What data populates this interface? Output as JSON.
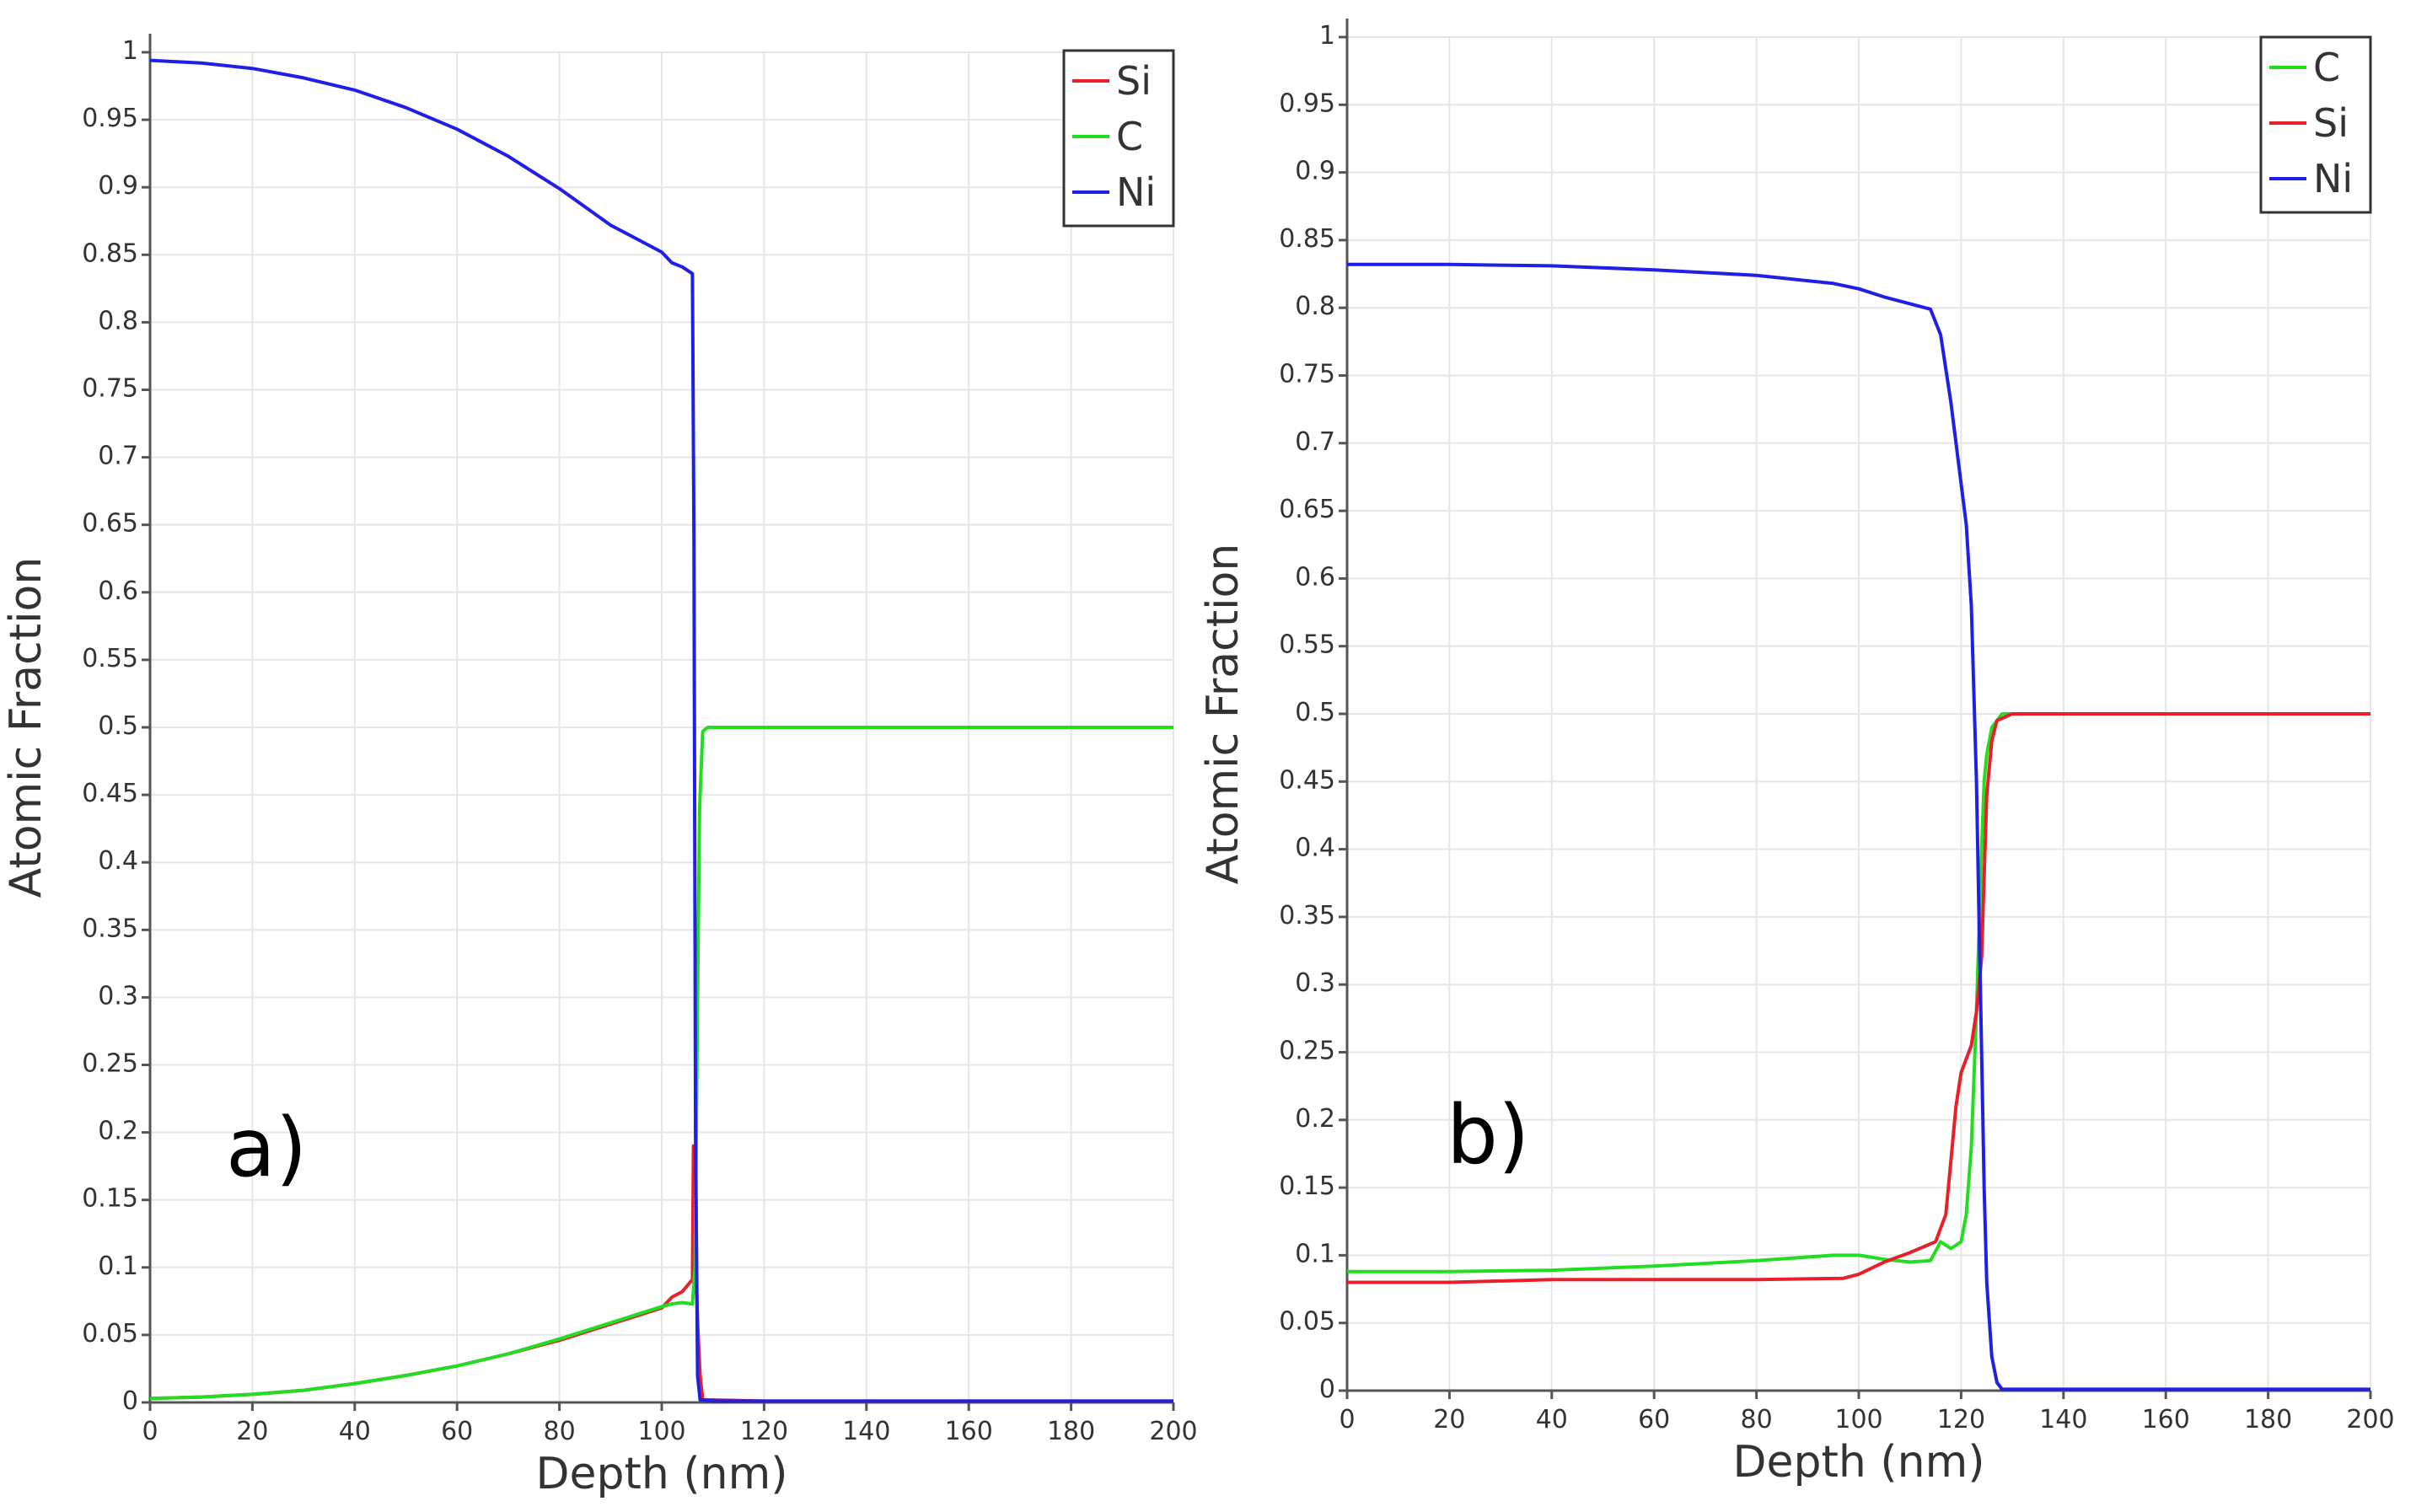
{
  "chart_data": [
    {
      "type": "line",
      "panel_label": "a)",
      "xlabel": "Depth (nm)",
      "ylabel": "Atomic Fraction",
      "xlim": [
        0,
        200
      ],
      "ylim": [
        0,
        1
      ],
      "x_ticks": [
        "0",
        "20",
        "40",
        "60",
        "80",
        "100",
        "120",
        "140",
        "160",
        "180",
        "200"
      ],
      "y_ticks": [
        "0",
        "0.05",
        "0.1",
        "0.15",
        "0.2",
        "0.25",
        "0.3",
        "0.35",
        "0.4",
        "0.45",
        "0.5",
        "0.55",
        "0.6",
        "0.65",
        "0.7",
        "0.75",
        "0.8",
        "0.85",
        "0.9",
        "0.95",
        "1"
      ],
      "grid": true,
      "legend_position": "top-right",
      "series": [
        {
          "name": "Si",
          "color": "#e8202a",
          "points": [
            [
              0,
              0.003
            ],
            [
              10,
              0.004
            ],
            [
              20,
              0.006
            ],
            [
              30,
              0.009
            ],
            [
              40,
              0.014
            ],
            [
              50,
              0.02
            ],
            [
              60,
              0.027
            ],
            [
              70,
              0.036
            ],
            [
              80,
              0.046
            ],
            [
              90,
              0.058
            ],
            [
              100,
              0.07
            ],
            [
              102,
              0.078
            ],
            [
              104,
              0.082
            ],
            [
              106,
              0.091
            ],
            [
              106.2,
              0.19
            ],
            [
              106.5,
              0.12
            ],
            [
              107,
              0.06
            ],
            [
              107.5,
              0.02
            ],
            [
              108,
              0.002
            ],
            [
              120,
              0.001
            ],
            [
              140,
              0.001
            ],
            [
              160,
              0.001
            ],
            [
              180,
              0.001
            ],
            [
              200,
              0.001
            ]
          ]
        },
        {
          "name": "C",
          "color": "#22dd22",
          "points": [
            [
              0,
              0.003
            ],
            [
              10,
              0.004
            ],
            [
              20,
              0.006
            ],
            [
              30,
              0.009
            ],
            [
              40,
              0.014
            ],
            [
              50,
              0.02
            ],
            [
              60,
              0.027
            ],
            [
              70,
              0.036
            ],
            [
              80,
              0.047
            ],
            [
              90,
              0.059
            ],
            [
              100,
              0.071
            ],
            [
              102,
              0.073
            ],
            [
              104,
              0.074
            ],
            [
              106,
              0.073
            ],
            [
              106.5,
              0.1
            ],
            [
              107,
              0.3
            ],
            [
              107.4,
              0.44
            ],
            [
              108,
              0.497
            ],
            [
              109,
              0.5
            ],
            [
              120,
              0.5
            ],
            [
              140,
              0.5
            ],
            [
              160,
              0.5
            ],
            [
              180,
              0.5
            ],
            [
              200,
              0.5
            ]
          ]
        },
        {
          "name": "Ni",
          "color": "#1f1fe6",
          "points": [
            [
              0,
              0.994
            ],
            [
              10,
              0.992
            ],
            [
              20,
              0.988
            ],
            [
              30,
              0.981
            ],
            [
              40,
              0.972
            ],
            [
              50,
              0.959
            ],
            [
              60,
              0.943
            ],
            [
              70,
              0.923
            ],
            [
              80,
              0.899
            ],
            [
              90,
              0.872
            ],
            [
              100,
              0.852
            ],
            [
              102,
              0.844
            ],
            [
              104,
              0.841
            ],
            [
              106,
              0.836
            ],
            [
              106.3,
              0.64
            ],
            [
              106.6,
              0.2
            ],
            [
              107,
              0.02
            ],
            [
              107.5,
              0.002
            ],
            [
              110,
              0.001
            ],
            [
              120,
              0.001
            ],
            [
              140,
              0.001
            ],
            [
              160,
              0.001
            ],
            [
              180,
              0.001
            ],
            [
              200,
              0.001
            ]
          ]
        }
      ]
    },
    {
      "type": "line",
      "panel_label": "b)",
      "xlabel": "Depth (nm)",
      "ylabel": "Atomic Fraction",
      "xlim": [
        0,
        200
      ],
      "ylim": [
        0,
        1
      ],
      "x_ticks": [
        "0",
        "20",
        "40",
        "60",
        "80",
        "100",
        "120",
        "140",
        "160",
        "180",
        "200"
      ],
      "y_ticks": [
        "0",
        "0.05",
        "0.1",
        "0.15",
        "0.2",
        "0.25",
        "0.3",
        "0.35",
        "0.4",
        "0.45",
        "0.5",
        "0.55",
        "0.6",
        "0.65",
        "0.7",
        "0.75",
        "0.8",
        "0.85",
        "0.9",
        "0.95",
        "1"
      ],
      "grid": true,
      "legend_position": "top-right",
      "series": [
        {
          "name": "C",
          "color": "#22dd22",
          "points": [
            [
              0,
              0.088
            ],
            [
              20,
              0.088
            ],
            [
              40,
              0.089
            ],
            [
              60,
              0.092
            ],
            [
              80,
              0.096
            ],
            [
              95,
              0.1
            ],
            [
              100,
              0.1
            ],
            [
              105,
              0.097
            ],
            [
              110,
              0.095
            ],
            [
              114,
              0.096
            ],
            [
              116,
              0.11
            ],
            [
              118,
              0.105
            ],
            [
              120,
              0.11
            ],
            [
              121,
              0.13
            ],
            [
              122,
              0.18
            ],
            [
              123,
              0.28
            ],
            [
              124,
              0.4
            ],
            [
              124.5,
              0.45
            ],
            [
              125,
              0.47
            ],
            [
              126,
              0.49
            ],
            [
              128,
              0.5
            ],
            [
              140,
              0.5
            ],
            [
              160,
              0.5
            ],
            [
              180,
              0.5
            ],
            [
              200,
              0.5
            ]
          ]
        },
        {
          "name": "Si",
          "color": "#e8202a",
          "points": [
            [
              0,
              0.08
            ],
            [
              20,
              0.08
            ],
            [
              40,
              0.082
            ],
            [
              60,
              0.082
            ],
            [
              80,
              0.082
            ],
            [
              97,
              0.083
            ],
            [
              100,
              0.086
            ],
            [
              105,
              0.095
            ],
            [
              110,
              0.102
            ],
            [
              115,
              0.11
            ],
            [
              117,
              0.13
            ],
            [
              118,
              0.17
            ],
            [
              119,
              0.21
            ],
            [
              120,
              0.235
            ],
            [
              122,
              0.255
            ],
            [
              123,
              0.28
            ],
            [
              124,
              0.32
            ],
            [
              124.5,
              0.38
            ],
            [
              125,
              0.44
            ],
            [
              126,
              0.48
            ],
            [
              127,
              0.495
            ],
            [
              130,
              0.5
            ],
            [
              140,
              0.5
            ],
            [
              160,
              0.5
            ],
            [
              180,
              0.5
            ],
            [
              200,
              0.5
            ]
          ]
        },
        {
          "name": "Ni",
          "color": "#1f1fe6",
          "points": [
            [
              0,
              0.832
            ],
            [
              20,
              0.832
            ],
            [
              40,
              0.831
            ],
            [
              60,
              0.828
            ],
            [
              80,
              0.824
            ],
            [
              95,
              0.818
            ],
            [
              100,
              0.814
            ],
            [
              105,
              0.808
            ],
            [
              110,
              0.803
            ],
            [
              114,
              0.799
            ],
            [
              116,
              0.78
            ],
            [
              118,
              0.73
            ],
            [
              120,
              0.67
            ],
            [
              121,
              0.64
            ],
            [
              122,
              0.58
            ],
            [
              123,
              0.45
            ],
            [
              123.5,
              0.35
            ],
            [
              124,
              0.25
            ],
            [
              124.5,
              0.15
            ],
            [
              125,
              0.08
            ],
            [
              126,
              0.025
            ],
            [
              127,
              0.006
            ],
            [
              128,
              0.001
            ],
            [
              130,
              0.001
            ],
            [
              140,
              0.001
            ],
            [
              160,
              0.001
            ],
            [
              180,
              0.001
            ],
            [
              200,
              0.001
            ]
          ]
        }
      ]
    }
  ]
}
